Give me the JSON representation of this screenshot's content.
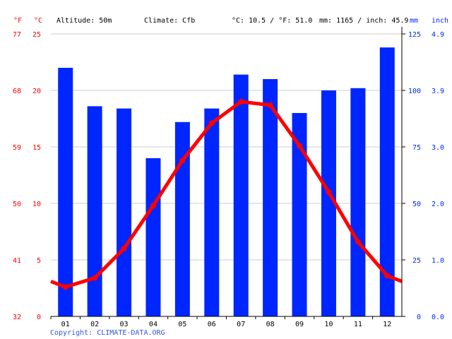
{
  "header": {
    "unit_f": "°F",
    "unit_c": "°C",
    "altitude": "Altitude: 50m",
    "climate": "Climate: Cfb",
    "temp_summary": "°C: 10.5 / °F: 51.0",
    "precip_summary": "mm: 1165 / inch: 45.9",
    "unit_mm": "mm",
    "unit_inch": "inch"
  },
  "copyright": "Copyright: CLIMATE-DATA.ORG",
  "chart_data": {
    "type": "bar+line",
    "categories": [
      "01",
      "02",
      "03",
      "04",
      "05",
      "06",
      "07",
      "08",
      "09",
      "10",
      "11",
      "12"
    ],
    "series": [
      {
        "type": "bar",
        "unit": "mm",
        "values": [
          110,
          93,
          92,
          70,
          86,
          92,
          107,
          105,
          90,
          100,
          101,
          119
        ],
        "color": "#0026ff"
      },
      {
        "type": "line",
        "unit": "°C",
        "values": [
          2.6,
          3.4,
          6.0,
          9.8,
          13.8,
          17.1,
          19.0,
          18.7,
          15.1,
          11.0,
          6.6,
          3.6
        ],
        "color": "#ff0000"
      }
    ],
    "y_left_c": {
      "ticks": [
        0,
        5,
        10,
        15,
        20,
        25
      ],
      "range": [
        0,
        25
      ]
    },
    "y_left_f": {
      "ticks": [
        "32",
        "41",
        "50",
        "59",
        "68",
        "77"
      ]
    },
    "y_right_mm": {
      "ticks": [
        "0",
        "25",
        "50",
        "75",
        "100",
        "125"
      ],
      "range": [
        0,
        125
      ]
    },
    "y_right_inch": {
      "ticks": [
        "0.0",
        "1.0",
        "2.0",
        "3.0",
        "3.9",
        "4.9"
      ]
    },
    "grid": true,
    "colors": {
      "temp": "#ff0000",
      "precip": "#0026ff",
      "fahrenheit_label": "#ff0000",
      "celsius_label": "#ff0000"
    }
  }
}
